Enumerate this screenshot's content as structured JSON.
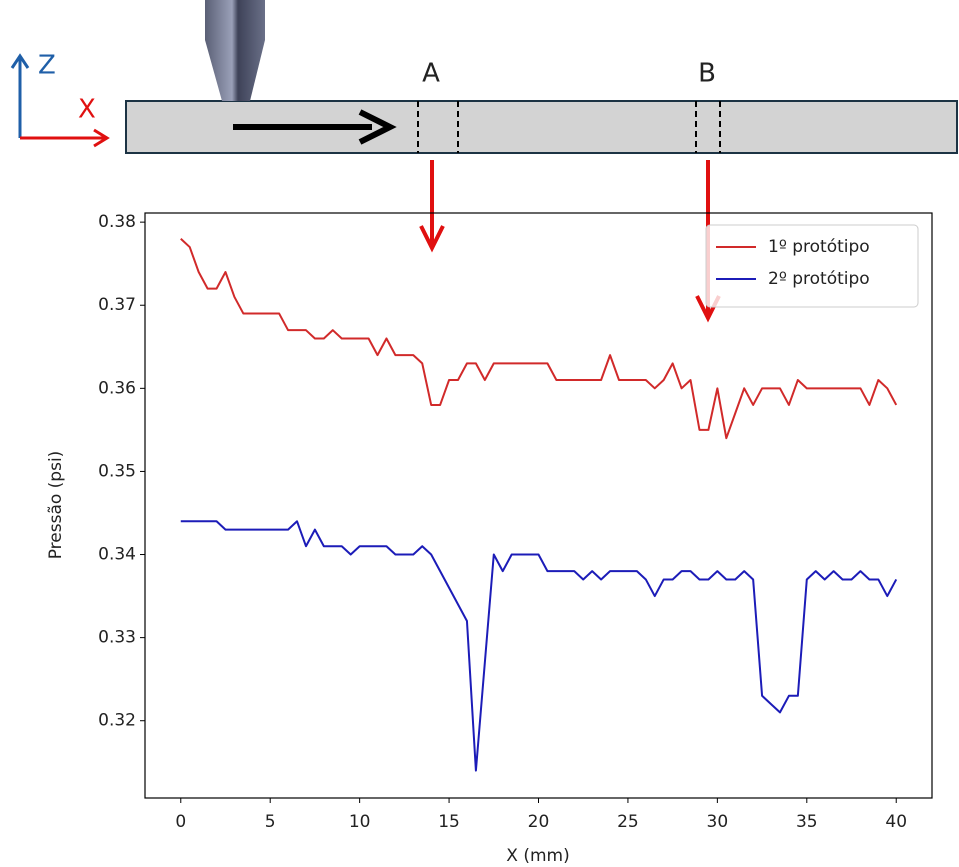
{
  "diagram": {
    "axis_labels": [
      "Z",
      "X"
    ],
    "regions": [
      "A",
      "B"
    ]
  },
  "chart_data": {
    "type": "line",
    "xlabel": "X (mm)",
    "ylabel": "Pressão (psi)",
    "x": [
      0,
      0.5,
      1,
      1.5,
      2,
      2.5,
      3,
      3.5,
      4,
      4.5,
      5,
      5.5,
      6,
      6.5,
      7,
      7.5,
      8,
      8.5,
      9,
      9.5,
      10,
      10.5,
      11,
      11.5,
      12,
      12.5,
      13,
      13.5,
      14,
      14.5,
      15,
      15.5,
      16,
      16.5,
      17,
      17.5,
      18,
      18.5,
      19,
      19.5,
      20,
      20.5,
      21,
      21.5,
      22,
      22.5,
      23,
      23.5,
      24,
      24.5,
      25,
      25.5,
      26,
      26.5,
      27,
      27.5,
      28,
      28.5,
      29,
      29.5,
      30,
      30.5,
      31,
      31.5,
      32,
      32.5,
      33,
      33.5,
      34,
      34.5,
      35,
      35.5,
      36,
      36.5,
      37,
      37.5,
      38,
      38.5,
      39,
      39.5,
      40
    ],
    "series": [
      {
        "name": "1º protótipo",
        "color": "#d12a2a",
        "values": [
          0.378,
          0.377,
          0.374,
          0.372,
          0.372,
          0.374,
          0.371,
          0.369,
          0.369,
          0.369,
          0.369,
          0.369,
          0.367,
          0.367,
          0.367,
          0.366,
          0.366,
          0.367,
          0.366,
          0.366,
          0.366,
          0.366,
          0.364,
          0.366,
          0.364,
          0.364,
          0.364,
          0.363,
          0.358,
          0.358,
          0.361,
          0.361,
          0.363,
          0.363,
          0.361,
          0.363,
          0.363,
          0.363,
          0.363,
          0.363,
          0.363,
          0.363,
          0.361,
          0.361,
          0.361,
          0.361,
          0.361,
          0.361,
          0.364,
          0.361,
          0.361,
          0.361,
          0.361,
          0.36,
          0.361,
          0.363,
          0.36,
          0.361,
          0.355,
          0.355,
          0.36,
          0.354,
          0.357,
          0.36,
          0.358,
          0.36,
          0.36,
          0.36,
          0.358,
          0.361,
          0.36,
          0.36,
          0.36,
          0.36,
          0.36,
          0.36,
          0.36,
          0.358,
          0.361,
          0.36,
          0.358
        ]
      },
      {
        "name": "2º protótipo",
        "color": "#1c1cb8",
        "values": [
          0.344,
          0.344,
          0.344,
          0.344,
          0.344,
          0.343,
          0.343,
          0.343,
          0.343,
          0.343,
          0.343,
          0.343,
          0.343,
          0.344,
          0.341,
          0.343,
          0.341,
          0.341,
          0.341,
          0.34,
          0.341,
          0.341,
          0.341,
          0.341,
          0.34,
          0.34,
          0.34,
          0.341,
          0.34,
          0.338,
          0.336,
          0.334,
          0.332,
          0.314,
          0.327,
          0.34,
          0.338,
          0.34,
          0.34,
          0.34,
          0.34,
          0.338,
          0.338,
          0.338,
          0.338,
          0.337,
          0.338,
          0.337,
          0.338,
          0.338,
          0.338,
          0.338,
          0.337,
          0.335,
          0.337,
          0.337,
          0.338,
          0.338,
          0.337,
          0.337,
          0.338,
          0.337,
          0.337,
          0.338,
          0.337,
          0.323,
          0.322,
          0.321,
          0.323,
          0.323,
          0.337,
          0.338,
          0.337,
          0.338,
          0.337,
          0.337,
          0.338,
          0.337,
          0.337,
          0.335,
          0.337
        ]
      }
    ],
    "xlim": [
      -2,
      42
    ],
    "xticks": [
      0,
      5,
      10,
      15,
      20,
      25,
      30,
      35,
      40
    ],
    "ylim": [
      0.3107,
      0.3811
    ],
    "yticks": [
      0.32,
      0.33,
      0.34,
      0.35,
      0.36,
      0.37,
      0.38
    ],
    "legend": "upper right"
  }
}
